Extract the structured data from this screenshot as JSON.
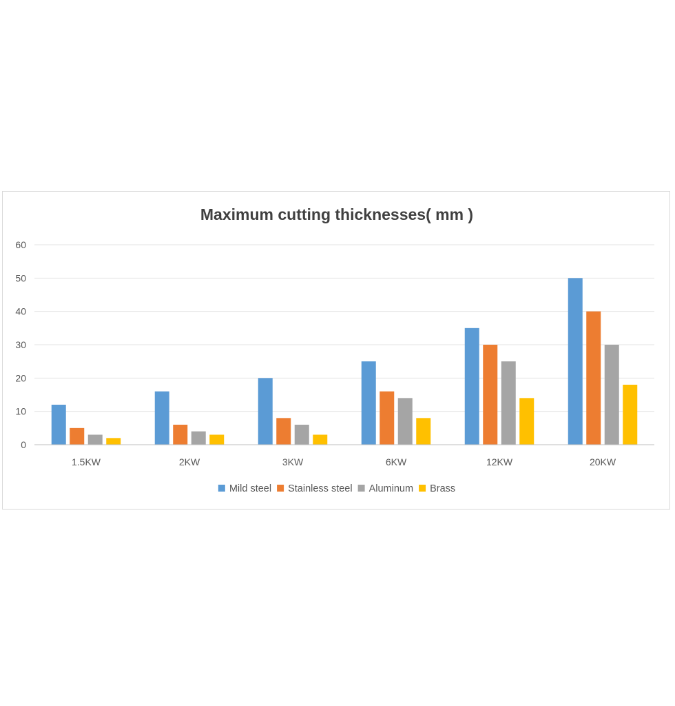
{
  "chart_data": {
    "type": "bar",
    "title": "Maximum cutting thicknesses( mm )",
    "xlabel": "",
    "ylabel": "",
    "categories": [
      "1.5KW",
      "2KW",
      "3KW",
      "6KW",
      "12KW",
      "20KW"
    ],
    "series": [
      {
        "name": "Mild steel",
        "color": "#5b9bd5",
        "values": [
          12,
          16,
          20,
          25,
          35,
          50
        ]
      },
      {
        "name": "Stainless steel",
        "color": "#ed7d31",
        "values": [
          5,
          6,
          8,
          16,
          30,
          40
        ]
      },
      {
        "name": "Aluminum",
        "color": "#a5a5a5",
        "values": [
          3,
          4,
          6,
          14,
          25,
          30
        ]
      },
      {
        "name": "Brass",
        "color": "#ffc000",
        "values": [
          2,
          3,
          3,
          8,
          14,
          18
        ]
      }
    ],
    "ylim": [
      0,
      60
    ],
    "yticks": [
      0,
      10,
      20,
      30,
      40,
      50,
      60
    ],
    "grid": true,
    "legend": "bottom-center"
  }
}
